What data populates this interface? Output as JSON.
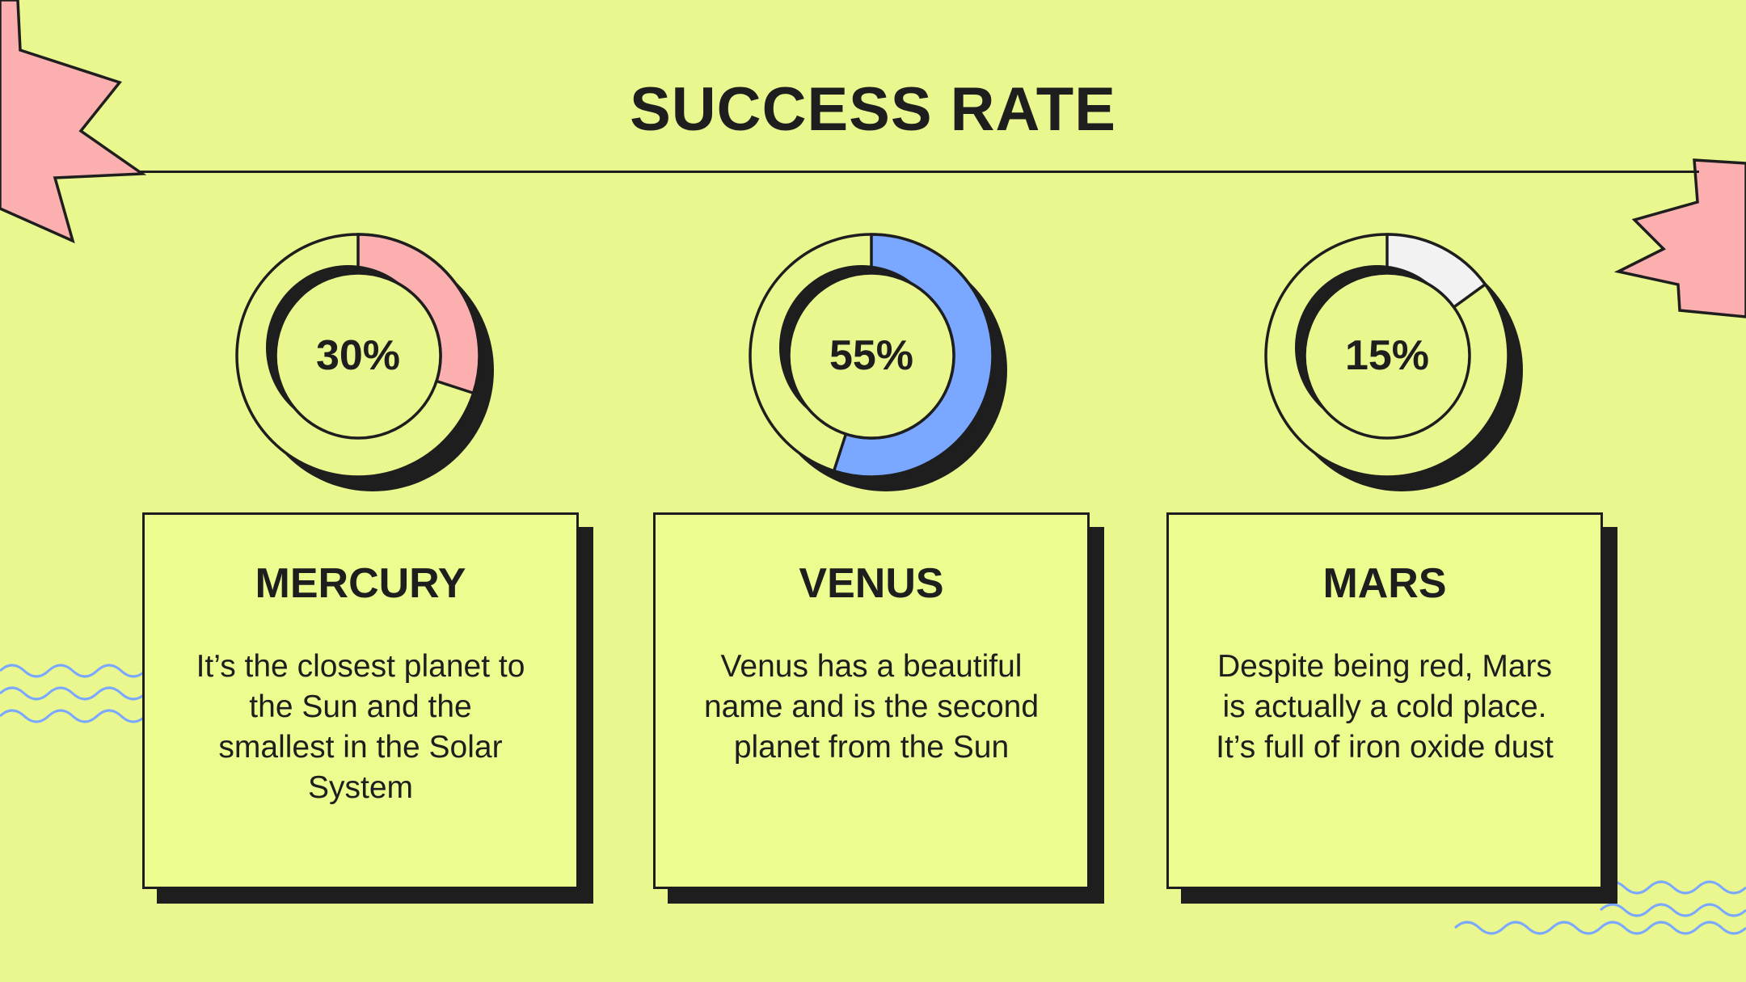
{
  "title": "SUCCESS RATE",
  "colors": {
    "background": "#e9f78e",
    "ink": "#1e1e1e",
    "pink": "#fbafaf",
    "blue": "#7aa7ff",
    "white": "#f2f2f2",
    "wave": "#7aa7ff"
  },
  "chart_data": {
    "type": "pie",
    "variant": "donut",
    "items": [
      {
        "label": "MERCURY",
        "value": 30,
        "display": "30%",
        "color": "#fbafaf",
        "description": "It’s the closest planet to the Sun and the smallest in the Solar System"
      },
      {
        "label": "VENUS",
        "value": 55,
        "display": "55%",
        "color": "#7aa7ff",
        "description": "Venus has a beautiful name and is the second planet from the Sun"
      },
      {
        "label": "MARS",
        "value": 15,
        "display": "15%",
        "color": "#f2f2f2",
        "description": "Despite being red, Mars is actually a cold place. It’s full of iron oxide dust"
      }
    ],
    "max": 100
  }
}
